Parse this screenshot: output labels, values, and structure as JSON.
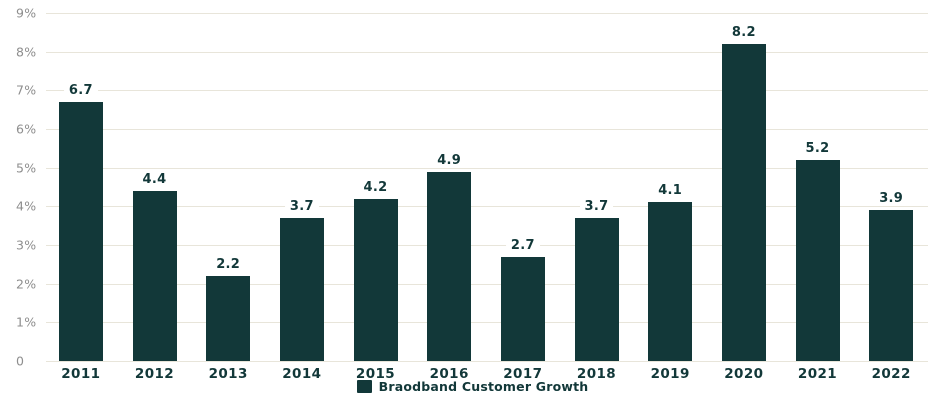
{
  "chart_data": {
    "type": "bar",
    "categories": [
      "2011",
      "2012",
      "2013",
      "2014",
      "2015",
      "2016",
      "2017",
      "2018",
      "2019",
      "2020",
      "2021",
      "2022"
    ],
    "series": [
      {
        "name": "Braodband Customer Growth",
        "values": [
          6.7,
          4.4,
          2.2,
          3.7,
          4.2,
          4.9,
          2.7,
          3.7,
          4.1,
          8.2,
          5.2,
          3.9
        ]
      }
    ],
    "ylim": [
      0,
      9
    ],
    "y_ticks": [
      "9%",
      "8%",
      "7%",
      "6%",
      "5%",
      "4%",
      "3%",
      "2%",
      "1%",
      "0"
    ],
    "grid": true,
    "legend_position": "bottom",
    "value_label_decimals": 1,
    "colors": {
      "bar": "#123839",
      "gridline": "#e8e5da",
      "y_tick_label": "#8e8e8e",
      "data_label": "#123839",
      "x_tick_label": "#123839",
      "legend_text": "#123839",
      "background": "#ffffff"
    }
  }
}
